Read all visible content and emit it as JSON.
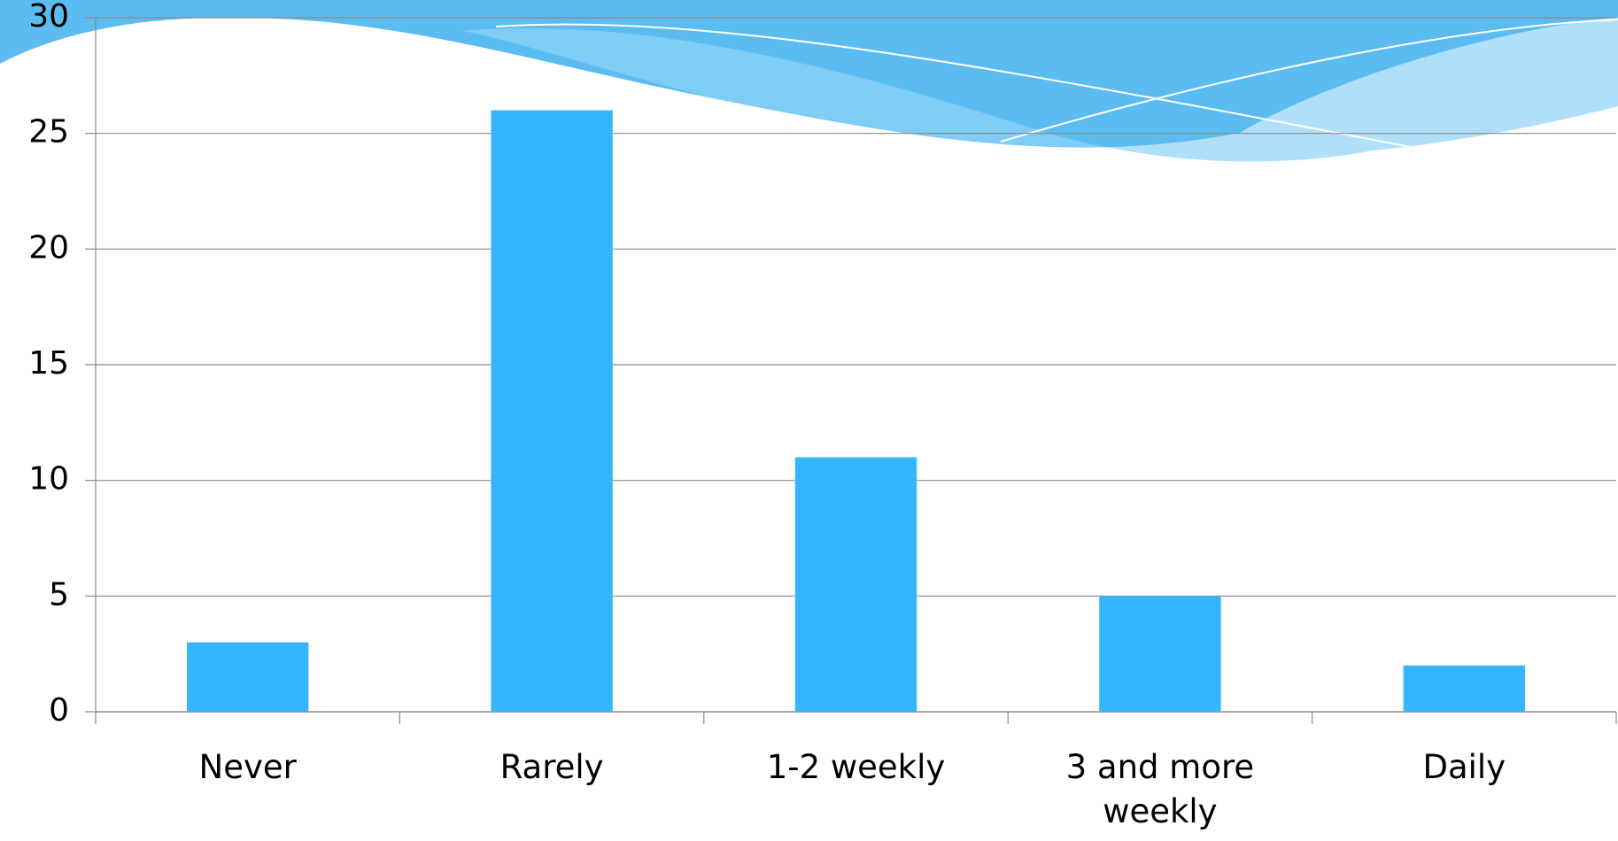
{
  "chart_data": {
    "type": "bar",
    "categories": [
      "Never",
      "Rarely",
      "1-2 weekly",
      "3 and more weekly",
      "Daily"
    ],
    "values": [
      3,
      26,
      11,
      5,
      2
    ],
    "color": "#33b5ff",
    "ylim": [
      0,
      30
    ],
    "yticks": [
      0,
      5,
      10,
      15,
      20,
      25,
      30
    ],
    "grid": true
  }
}
